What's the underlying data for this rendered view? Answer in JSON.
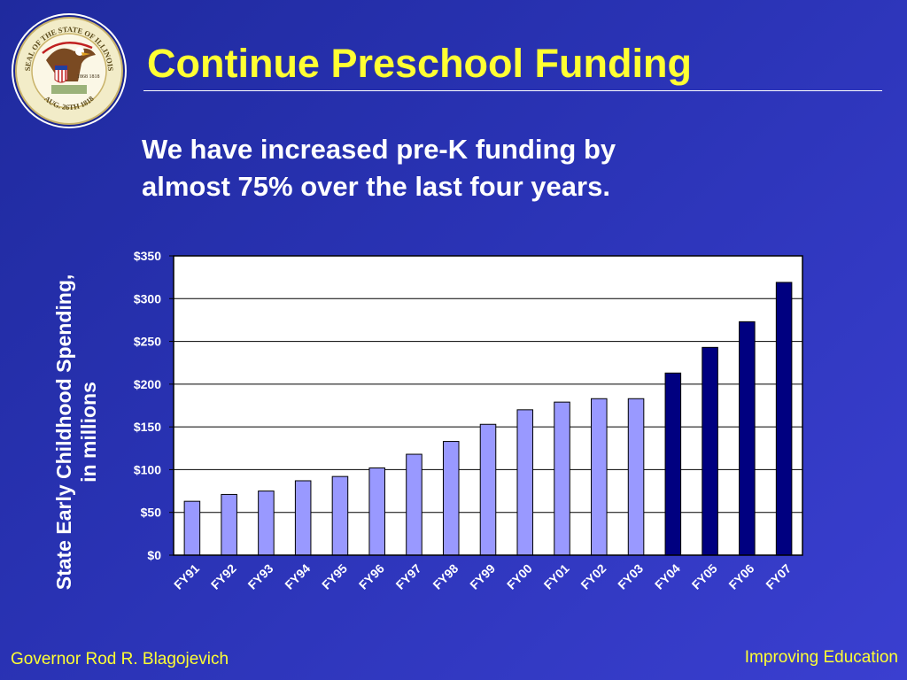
{
  "slide": {
    "title": "Continue Preschool Funding",
    "subtitle_line1": "We have increased pre-K funding by",
    "subtitle_line2": "almost 75% over the last four years.",
    "footer_left": "Governor Rod R. Blagojevich",
    "footer_right": "Improving Education",
    "seal": {
      "top_text": "SEAL OF THE STATE OF ILLINOIS",
      "bottom_text": "AUG. 26TH 1818",
      "years": "1868 1818"
    }
  },
  "colors": {
    "background": "#2a33b5",
    "title": "#ffff33",
    "bar_light": "#9999ff",
    "bar_dark": "#000080",
    "plot_bg": "#ffffff"
  },
  "chart_data": {
    "type": "bar",
    "categories": [
      "FY91",
      "FY92",
      "FY93",
      "FY94",
      "FY95",
      "FY96",
      "FY97",
      "FY98",
      "FY99",
      "FY00",
      "FY01",
      "FY02",
      "FY03",
      "FY04",
      "FY05",
      "FY06",
      "FY07"
    ],
    "values": [
      63,
      71,
      75,
      87,
      92,
      102,
      118,
      133,
      153,
      170,
      179,
      183,
      183,
      213,
      243,
      273,
      319
    ],
    "bar_colors": [
      "#9999ff",
      "#9999ff",
      "#9999ff",
      "#9999ff",
      "#9999ff",
      "#9999ff",
      "#9999ff",
      "#9999ff",
      "#9999ff",
      "#9999ff",
      "#9999ff",
      "#9999ff",
      "#9999ff",
      "#000080",
      "#000080",
      "#000080",
      "#000080"
    ],
    "ylabel_line1": "State Early Childhood Spending,",
    "ylabel_line2": "in millions",
    "xlabel": "",
    "ylim": [
      0,
      350
    ],
    "yticks": [
      0,
      50,
      100,
      150,
      200,
      250,
      300,
      350
    ],
    "ytick_labels": [
      "$0",
      "$50",
      "$100",
      "$150",
      "$200",
      "$250",
      "$300",
      "$350"
    ],
    "grid": true
  }
}
